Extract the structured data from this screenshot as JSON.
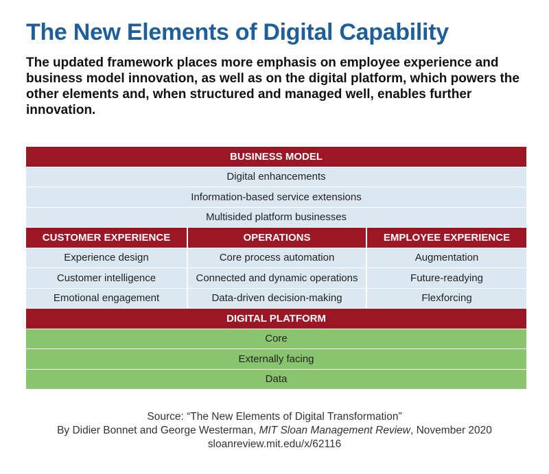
{
  "title": "The New Elements of Digital Capability",
  "subtitle": "The updated framework places more emphasis on employee experience and business model innovation, as well as on the digital platform, which powers the other elements and, when structured and managed well, enables further innovation.",
  "framework": {
    "business_model": {
      "header": "BUSINESS MODEL",
      "items": [
        "Digital enhancements",
        "Information-based service extensions",
        "Multisided platform businesses"
      ]
    },
    "columns": [
      {
        "header": "CUSTOMER EXPERIENCE",
        "items": [
          "Experience design",
          "Customer intelligence",
          "Emotional engagement"
        ]
      },
      {
        "header": "OPERATIONS",
        "items": [
          "Core process automation",
          "Connected and dynamic operations",
          "Data-driven decision-making"
        ]
      },
      {
        "header": "EMPLOYEE EXPERIENCE",
        "items": [
          "Augmentation",
          "Future-readying",
          "Flexforcing"
        ]
      }
    ],
    "digital_platform": {
      "header": "DIGITAL PLATFORM",
      "items": [
        "Core",
        "Externally facing",
        "Data"
      ]
    }
  },
  "source": {
    "line1": "Source: “The New Elements of Digital Transformation”",
    "line2_prefix": "By Didier Bonnet and George Westerman, ",
    "line2_journal": "MIT Sloan Management Review",
    "line2_suffix": ", November 2020",
    "line3": "sloanreview.mit.edu/x/62116"
  },
  "colors": {
    "title": "#1f5f99",
    "header_red": "#9c1726",
    "light_blue": "#dce8f1",
    "green": "#8bc46f"
  }
}
